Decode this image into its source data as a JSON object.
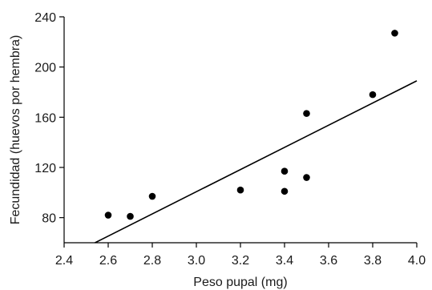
{
  "chart_data": {
    "type": "scatter",
    "title": "",
    "xlabel": "Peso pupal (mg)",
    "ylabel": "Fecundidad (huevos por hembra)",
    "xlim": [
      2.4,
      4.0
    ],
    "ylim": [
      60,
      240
    ],
    "xticks": [
      2.4,
      2.6,
      2.8,
      3.0,
      3.2,
      3.4,
      3.6,
      3.8,
      4.0
    ],
    "xtick_labels": [
      "2.4",
      "2.6",
      "2.8",
      "3.0",
      "3.2",
      "3.4",
      "3.6",
      "3.8",
      "4.0"
    ],
    "yticks": [
      80,
      120,
      160,
      200,
      240
    ],
    "ytick_labels": [
      "80",
      "120",
      "160",
      "200",
      "240"
    ],
    "grid": false,
    "series": [
      {
        "x": [
          2.6,
          2.7,
          2.8,
          3.2,
          3.4,
          3.4,
          3.5,
          3.5,
          3.8,
          3.9
        ],
        "y": [
          82,
          81,
          97,
          102,
          117,
          101,
          163,
          112,
          178,
          227
        ],
        "color": "#000000"
      }
    ],
    "fit_line": {
      "x": [
        2.54,
        4.0
      ],
      "y": [
        60,
        189
      ],
      "color": "#000000"
    }
  }
}
